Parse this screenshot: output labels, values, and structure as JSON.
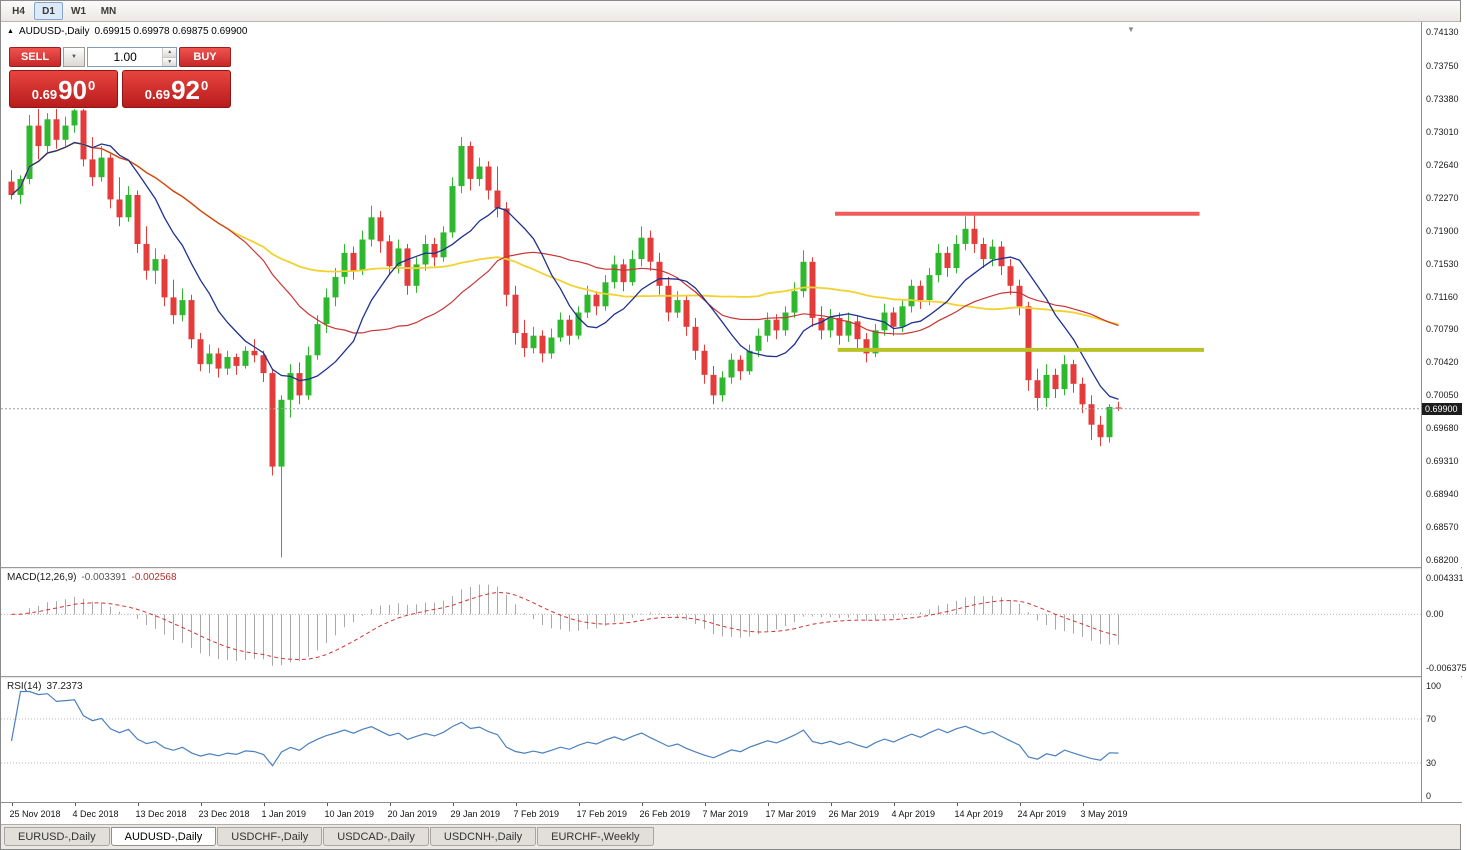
{
  "icons": {
    "title_marker": "▲",
    "dropdown_caret": "▼",
    "spinner_up": "▲",
    "spinner_down": "▼",
    "pane_collapse": "▼"
  },
  "toolbar": {
    "timeframes": [
      "H4",
      "D1",
      "W1",
      "MN"
    ],
    "active": "D1"
  },
  "chart_header": {
    "symbol_title": "AUDUSD-,Daily",
    "ohlc": "0.69915 0.69978 0.69875 0.69900"
  },
  "trade_panel": {
    "sell_label": "SELL",
    "buy_label": "BUY",
    "volume": "1.00",
    "sell_price": {
      "base": "0.69",
      "pips": "90",
      "pipette": "0"
    },
    "buy_price": {
      "base": "0.69",
      "pips": "92",
      "pipette": "0"
    }
  },
  "indicator_labels": {
    "macd_name": "MACD(12,26,9)",
    "macd_main_value": "-0.003391",
    "macd_signal_value": "-0.002568",
    "rsi_name": "RSI(14)",
    "rsi_value": "37.2373"
  },
  "price_axis": {
    "labels": [
      "0.74130",
      "0.73750",
      "0.73380",
      "0.73010",
      "0.72640",
      "0.72270",
      "0.71900",
      "0.71530",
      "0.71160",
      "0.70790",
      "0.70420",
      "0.70050",
      "0.69680",
      "0.69310",
      "0.68940",
      "0.68570",
      "0.68200"
    ],
    "current_price_label": "0.69900"
  },
  "macd_axis": {
    "labels": [
      {
        "text": "0.004331",
        "value": 0.004331
      },
      {
        "text": "0.00",
        "value": 0
      },
      {
        "text": "-0.006375",
        "value": -0.006375
      }
    ]
  },
  "rsi_axis": {
    "labels": [
      {
        "text": "100",
        "value": 100
      },
      {
        "text": "70",
        "value": 70
      },
      {
        "text": "30",
        "value": 30
      },
      {
        "text": "0",
        "value": 0
      }
    ]
  },
  "date_axis": [
    "25 Nov 2018",
    "4 Dec 2018",
    "13 Dec 2018",
    "23 Dec 2018",
    "1 Jan 2019",
    "10 Jan 2019",
    "20 Jan 2019",
    "29 Jan 2019",
    "7 Feb 2019",
    "17 Feb 2019",
    "26 Feb 2019",
    "7 Mar 2019",
    "17 Mar 2019",
    "26 Mar 2019",
    "4 Apr 2019",
    "14 Apr 2019",
    "24 Apr 2019",
    "3 May 2019"
  ],
  "tabs": [
    {
      "label": "EURUSD-,Daily",
      "active": false
    },
    {
      "label": "AUDUSD-,Daily",
      "active": true
    },
    {
      "label": "USDCHF-,Daily",
      "active": false
    },
    {
      "label": "USDCAD-,Daily",
      "active": false
    },
    {
      "label": "USDCNH-,Daily",
      "active": false
    },
    {
      "label": "EURCHF-,Weekly",
      "active": false
    }
  ],
  "chart_data": {
    "type": "candlestick",
    "symbol": "AUDUSD-",
    "timeframe": "Daily",
    "title": "AUDUSD-,Daily",
    "legend_position": "top-left",
    "grid": false,
    "price_domain": {
      "top": 0.74243,
      "bottom": 0.68122
    },
    "label_every": 7,
    "current_price": 0.699,
    "colors": {
      "bull": "#2eb82e",
      "bear": "#e43b3b",
      "ma_fast": "#20318f",
      "ma_mid": "#c93636",
      "ma_slow": "#f2d230",
      "macd_hist": "#a9a9a9",
      "macd_signal": "#d23535",
      "rsi_line": "#4a80c0",
      "resistance": "#f25b5b",
      "support": "#b8c224",
      "current_price_line": "#9aa0a6"
    },
    "moving_averages": [
      {
        "period": 10
      },
      {
        "period": 25
      },
      {
        "period": 55
      }
    ],
    "hlines": [
      {
        "price": 0.7209,
        "from_index": 92,
        "to_index": 132.5,
        "role": "resistance"
      },
      {
        "price": 0.7056,
        "from_index": 92.3,
        "to_index": 133,
        "role": "support"
      }
    ],
    "macd": {
      "fast": 12,
      "slow": 26,
      "signal_period": 9,
      "scale_top": 0.005283,
      "scale_bottom": -0.007327
    },
    "rsi": {
      "period": 14,
      "levels": [
        70,
        30
      ],
      "y_top_value": 106.4,
      "y_bottom_value": -5.5
    },
    "candles": [
      [
        0.7245,
        0.7258,
        0.7225,
        0.723
      ],
      [
        0.723,
        0.7252,
        0.722,
        0.7248
      ],
      [
        0.7248,
        0.732,
        0.7242,
        0.7308
      ],
      [
        0.7308,
        0.733,
        0.727,
        0.7285
      ],
      [
        0.7285,
        0.7322,
        0.7278,
        0.7315
      ],
      [
        0.7315,
        0.7328,
        0.7282,
        0.7292
      ],
      [
        0.7292,
        0.7318,
        0.7285,
        0.7308
      ],
      [
        0.7308,
        0.7337,
        0.73,
        0.7325
      ],
      [
        0.7325,
        0.733,
        0.7262,
        0.727
      ],
      [
        0.727,
        0.7295,
        0.724,
        0.725
      ],
      [
        0.725,
        0.7285,
        0.7245,
        0.7272
      ],
      [
        0.7272,
        0.7278,
        0.7215,
        0.7225
      ],
      [
        0.7225,
        0.725,
        0.7195,
        0.7205
      ],
      [
        0.7205,
        0.724,
        0.72,
        0.723
      ],
      [
        0.723,
        0.7235,
        0.7165,
        0.7175
      ],
      [
        0.7175,
        0.7195,
        0.7135,
        0.7145
      ],
      [
        0.7145,
        0.717,
        0.713,
        0.7158
      ],
      [
        0.7158,
        0.7163,
        0.7105,
        0.7115
      ],
      [
        0.7115,
        0.7135,
        0.7085,
        0.7095
      ],
      [
        0.7095,
        0.7125,
        0.7088,
        0.7112
      ],
      [
        0.7112,
        0.7118,
        0.7058,
        0.7068
      ],
      [
        0.7068,
        0.7075,
        0.7032,
        0.704
      ],
      [
        0.704,
        0.7062,
        0.703,
        0.7052
      ],
      [
        0.7052,
        0.7058,
        0.7025,
        0.7035
      ],
      [
        0.7035,
        0.7055,
        0.7028,
        0.7048
      ],
      [
        0.7048,
        0.7052,
        0.7028,
        0.7038
      ],
      [
        0.7038,
        0.706,
        0.7035,
        0.7055
      ],
      [
        0.7055,
        0.7068,
        0.7042,
        0.705
      ],
      [
        0.705,
        0.7055,
        0.702,
        0.703
      ],
      [
        0.703,
        0.7035,
        0.6915,
        0.6925
      ],
      [
        0.6925,
        0.7005,
        0.6823,
        0.7
      ],
      [
        0.7,
        0.704,
        0.698,
        0.703
      ],
      [
        0.703,
        0.7042,
        0.6995,
        0.7005
      ],
      [
        0.7005,
        0.706,
        0.7,
        0.705
      ],
      [
        0.705,
        0.7095,
        0.7045,
        0.7085
      ],
      [
        0.7085,
        0.7125,
        0.7075,
        0.7115
      ],
      [
        0.7115,
        0.7148,
        0.7105,
        0.7138
      ],
      [
        0.7138,
        0.7175,
        0.713,
        0.7165
      ],
      [
        0.7165,
        0.7172,
        0.7135,
        0.7145
      ],
      [
        0.7145,
        0.719,
        0.714,
        0.718
      ],
      [
        0.718,
        0.7218,
        0.7172,
        0.7205
      ],
      [
        0.7205,
        0.7212,
        0.7165,
        0.7178
      ],
      [
        0.7178,
        0.7185,
        0.714,
        0.715
      ],
      [
        0.715,
        0.718,
        0.7142,
        0.717
      ],
      [
        0.717,
        0.7175,
        0.7118,
        0.7128
      ],
      [
        0.7128,
        0.716,
        0.712,
        0.7152
      ],
      [
        0.7152,
        0.7185,
        0.7145,
        0.7175
      ],
      [
        0.7175,
        0.7182,
        0.715,
        0.716
      ],
      [
        0.716,
        0.7195,
        0.7155,
        0.7188
      ],
      [
        0.7188,
        0.725,
        0.7182,
        0.724
      ],
      [
        0.724,
        0.7295,
        0.7232,
        0.7285
      ],
      [
        0.7285,
        0.729,
        0.7235,
        0.7248
      ],
      [
        0.7248,
        0.7272,
        0.724,
        0.7262
      ],
      [
        0.7262,
        0.7268,
        0.7225,
        0.7235
      ],
      [
        0.7235,
        0.7262,
        0.7205,
        0.7215
      ],
      [
        0.7215,
        0.7222,
        0.7105,
        0.7118
      ],
      [
        0.7118,
        0.7128,
        0.7062,
        0.7075
      ],
      [
        0.7075,
        0.709,
        0.7048,
        0.7058
      ],
      [
        0.7058,
        0.7082,
        0.7052,
        0.7072
      ],
      [
        0.7072,
        0.7078,
        0.7042,
        0.7052
      ],
      [
        0.7052,
        0.708,
        0.7046,
        0.707
      ],
      [
        0.707,
        0.7098,
        0.7065,
        0.709
      ],
      [
        0.709,
        0.7095,
        0.7062,
        0.7072
      ],
      [
        0.7072,
        0.7105,
        0.7068,
        0.7098
      ],
      [
        0.7098,
        0.7128,
        0.7092,
        0.7118
      ],
      [
        0.7118,
        0.7122,
        0.7095,
        0.7105
      ],
      [
        0.7105,
        0.714,
        0.71,
        0.7132
      ],
      [
        0.7132,
        0.7162,
        0.7125,
        0.7152
      ],
      [
        0.7152,
        0.7158,
        0.7122,
        0.7132
      ],
      [
        0.7132,
        0.7168,
        0.7128,
        0.7158
      ],
      [
        0.7158,
        0.7195,
        0.715,
        0.7182
      ],
      [
        0.7182,
        0.719,
        0.7145,
        0.7155
      ],
      [
        0.7155,
        0.7165,
        0.7118,
        0.7128
      ],
      [
        0.7128,
        0.7138,
        0.7088,
        0.7098
      ],
      [
        0.7098,
        0.7122,
        0.7092,
        0.7112
      ],
      [
        0.7112,
        0.7118,
        0.7072,
        0.7082
      ],
      [
        0.7082,
        0.7092,
        0.7045,
        0.7055
      ],
      [
        0.7055,
        0.7062,
        0.7018,
        0.7028
      ],
      [
        0.7028,
        0.7038,
        0.6995,
        0.7005
      ],
      [
        0.7005,
        0.7032,
        0.6998,
        0.7025
      ],
      [
        0.7025,
        0.7052,
        0.7018,
        0.7045
      ],
      [
        0.7045,
        0.705,
        0.7022,
        0.7032
      ],
      [
        0.7032,
        0.7062,
        0.7028,
        0.7055
      ],
      [
        0.7055,
        0.708,
        0.7048,
        0.7072
      ],
      [
        0.7072,
        0.7098,
        0.7065,
        0.709
      ],
      [
        0.709,
        0.7096,
        0.7068,
        0.7078
      ],
      [
        0.7078,
        0.7105,
        0.7072,
        0.7098
      ],
      [
        0.7098,
        0.7132,
        0.7092,
        0.7122
      ],
      [
        0.7122,
        0.7168,
        0.7115,
        0.7155
      ],
      [
        0.7155,
        0.716,
        0.7082,
        0.7092
      ],
      [
        0.7092,
        0.7105,
        0.7068,
        0.7078
      ],
      [
        0.7078,
        0.7102,
        0.707,
        0.7092
      ],
      [
        0.7092,
        0.7098,
        0.7062,
        0.7072
      ],
      [
        0.7072,
        0.7098,
        0.7065,
        0.7088
      ],
      [
        0.7088,
        0.7094,
        0.7058,
        0.7068
      ],
      [
        0.7068,
        0.7075,
        0.7042,
        0.7052
      ],
      [
        0.7052,
        0.7085,
        0.7048,
        0.7078
      ],
      [
        0.7078,
        0.7108,
        0.7072,
        0.7098
      ],
      [
        0.7098,
        0.7104,
        0.7072,
        0.7082
      ],
      [
        0.7082,
        0.7112,
        0.7076,
        0.7105
      ],
      [
        0.7105,
        0.7135,
        0.7098,
        0.7128
      ],
      [
        0.7128,
        0.7134,
        0.7102,
        0.7112
      ],
      [
        0.7112,
        0.7148,
        0.7106,
        0.714
      ],
      [
        0.714,
        0.7175,
        0.7132,
        0.7165
      ],
      [
        0.7165,
        0.7172,
        0.7138,
        0.7148
      ],
      [
        0.7148,
        0.7185,
        0.7142,
        0.7175
      ],
      [
        0.7175,
        0.7206,
        0.7168,
        0.7192
      ],
      [
        0.7192,
        0.721,
        0.7165,
        0.7175
      ],
      [
        0.7175,
        0.7182,
        0.7148,
        0.7158
      ],
      [
        0.7158,
        0.718,
        0.715,
        0.7172
      ],
      [
        0.7172,
        0.7178,
        0.714,
        0.715
      ],
      [
        0.715,
        0.7158,
        0.7118,
        0.7128
      ],
      [
        0.7128,
        0.7135,
        0.7095,
        0.7105
      ],
      [
        0.7105,
        0.711,
        0.701,
        0.7022
      ],
      [
        0.7022,
        0.7035,
        0.6988,
        0.7002
      ],
      [
        0.7002,
        0.704,
        0.6992,
        0.7028
      ],
      [
        0.7028,
        0.7035,
        0.7002,
        0.7012
      ],
      [
        0.7012,
        0.705,
        0.7005,
        0.704
      ],
      [
        0.704,
        0.7045,
        0.7008,
        0.7018
      ],
      [
        0.7018,
        0.7025,
        0.6985,
        0.6995
      ],
      [
        0.6995,
        0.7005,
        0.6955,
        0.6972
      ],
      [
        0.6972,
        0.6982,
        0.6948,
        0.6958
      ],
      [
        0.6958,
        0.6995,
        0.6952,
        0.6992
      ],
      [
        0.69915,
        0.69978,
        0.69875,
        0.699
      ]
    ]
  }
}
